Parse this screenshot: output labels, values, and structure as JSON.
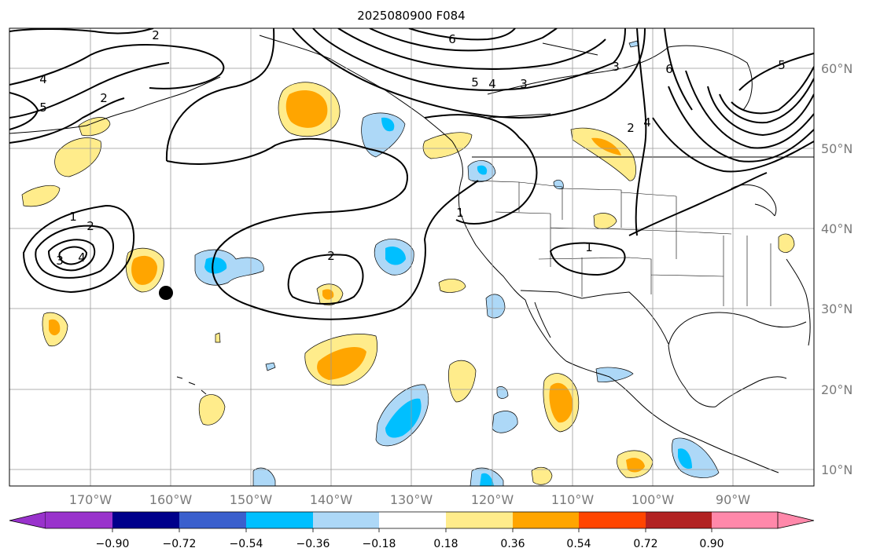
{
  "title": "2025080900 F084",
  "lon_labels": [
    "170°W",
    "160°W",
    "150°W",
    "140°W",
    "130°W",
    "120°W",
    "110°W",
    "100°W",
    "90°W"
  ],
  "lat_labels": [
    "60°N",
    "50°N",
    "40°N",
    "30°N",
    "20°N",
    "10°N"
  ],
  "colorbar": {
    "ticks": [
      "−0.90",
      "−0.72",
      "−0.54",
      "−0.36",
      "−0.18",
      "0.18",
      "0.36",
      "0.54",
      "0.72",
      "0.90"
    ],
    "colors": [
      "#9932cc",
      "#00008b",
      "#3a5fcd",
      "#00bfff",
      "#add8f7",
      "#ffffff",
      "#ffec8b",
      "#ffa500",
      "#ff4500",
      "#b22222",
      "#ff88aa"
    ]
  },
  "contour_labels": [
    "6",
    "5",
    "4",
    "3",
    "4",
    "5",
    "2",
    "1",
    "2",
    "3",
    "4",
    "1",
    "2",
    "6",
    "5",
    "3",
    "2",
    "4",
    "2",
    "1"
  ],
  "marker": "location-dot"
}
